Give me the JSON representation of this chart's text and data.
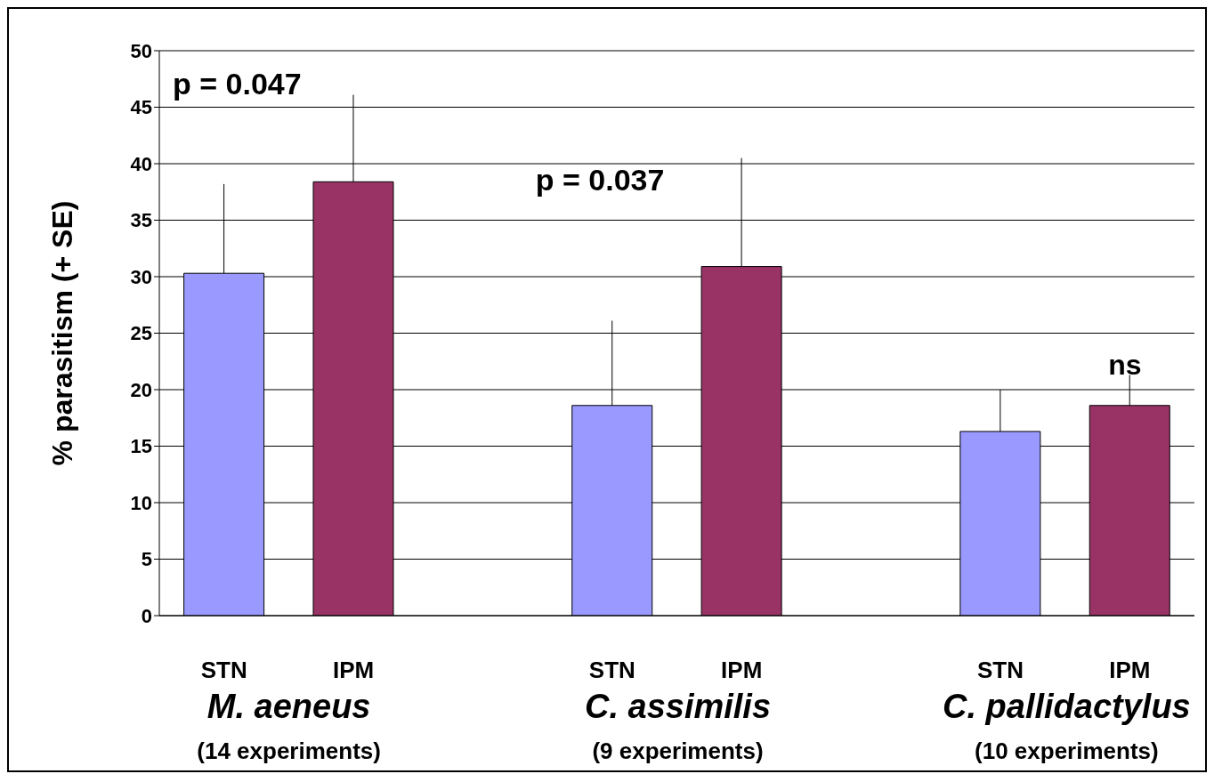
{
  "chart_data": {
    "type": "bar",
    "ylabel": "% parasitism (+ SE)",
    "categories": [
      "STN",
      "IPM",
      null,
      "STN",
      "IPM",
      null,
      "STN",
      "IPM"
    ],
    "values": [
      30.3,
      38.4,
      null,
      18.6,
      30.9,
      null,
      16.3,
      18.6
    ],
    "colors": [
      "#9999ff",
      "#993366",
      null,
      "#9999ff",
      "#993366",
      null,
      "#9999ff",
      "#993366"
    ],
    "errors": [
      [
        30.3,
        38.2
      ],
      [
        38.4,
        46.1
      ],
      null,
      [
        18.6,
        26.1
      ],
      [
        30.9,
        40.5
      ],
      null,
      [
        16.3,
        20.0
      ],
      [
        18.6,
        21.3
      ]
    ],
    "ylim": [
      0,
      50
    ],
    "yticks": [
      0,
      5,
      10,
      15,
      20,
      25,
      30,
      35,
      40,
      45,
      50
    ],
    "grid": "y",
    "annotations": [
      "p = 0.047",
      "p = 0.037",
      "ns",
      "M. aeneus",
      "(14 experiments)",
      "C. assimilis",
      "(9 experiments)",
      "C. pallidactylus",
      "(10 experiments)"
    ]
  }
}
